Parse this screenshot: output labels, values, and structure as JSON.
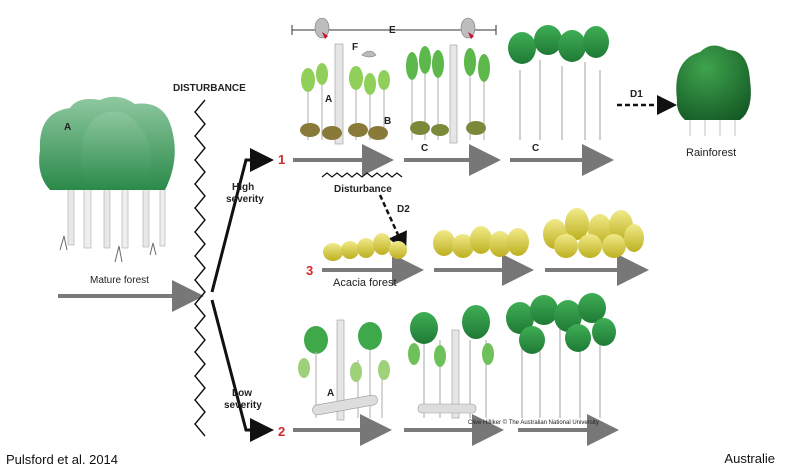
{
  "labels": {
    "disturbance_title": "DISTURBANCE",
    "high_severity_line1": "High",
    "high_severity_line2": "severity",
    "low_severity_line1": "Low",
    "low_severity_line2": "severity",
    "mature_forest": "Mature forest",
    "pathway_1": "1",
    "pathway_2": "2",
    "pathway_3": "3",
    "rainforest": "Rainforest",
    "acacia_forest": "Acacia forest",
    "disturbance_small": "Disturbance",
    "d1": "D1",
    "d2": "D2",
    "e": "E",
    "f": "F",
    "a_mature": "A",
    "a_path1": "A",
    "b_path1": "B",
    "a_path2": "A",
    "c_first": "C",
    "c_second": "C",
    "credit": "Clive Hilliker © The Australian National University"
  },
  "footer": {
    "citation": "Pulsford et al. 2014",
    "country": "Australie"
  },
  "colors": {
    "canopy_green": "#2f9a45",
    "canopy_dark": "#1f6e2f",
    "acacia_yellow": "#d9cf3a",
    "arrow_grey": "#7a7a7a",
    "pathway_red": "#d8262c"
  }
}
